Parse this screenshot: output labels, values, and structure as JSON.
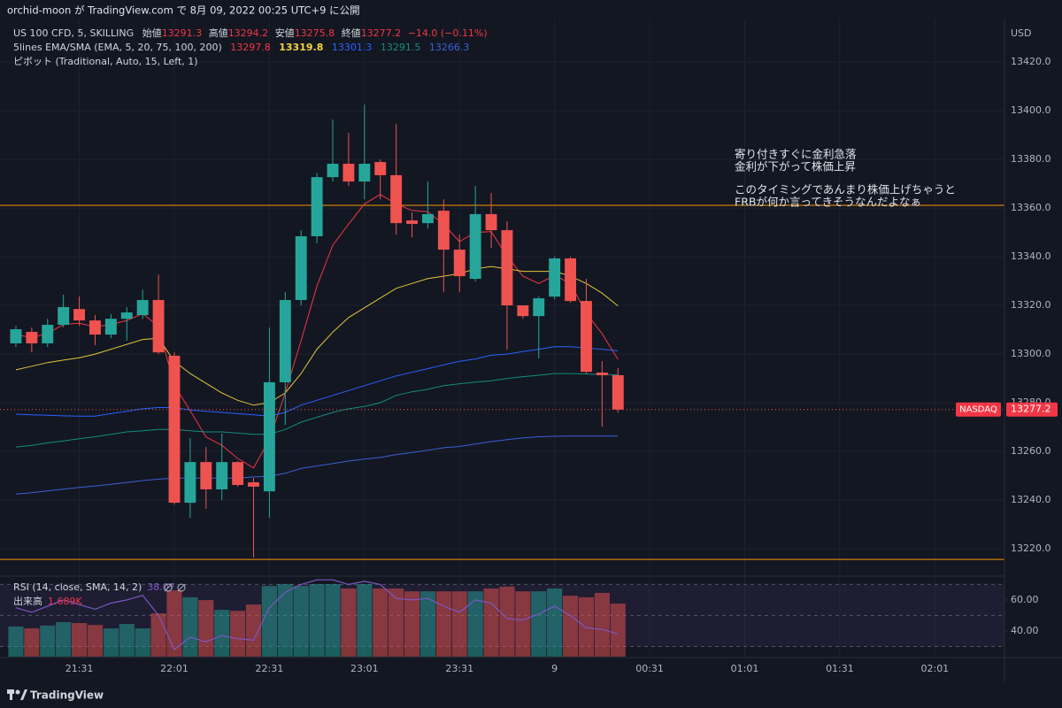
{
  "header": "orchid-moon が TradingView.com で 8月 09, 2022 00:25 UTC+9 に公開",
  "footer": "TradingView",
  "chart_data": {
    "type": "candlestick",
    "symbol": "US 100 CFD, 5, SKILLING",
    "ohlc_labels": [
      "始値",
      "高値",
      "安値",
      "終値"
    ],
    "change": "−14.0 (−0.11%)",
    "indicator": "5lines EMA/SMA (EMA, 5, 20, 75, 100, 200)",
    "pivot_name": "ピボット (Traditional, Auto, 15, Left, 1)",
    "currency": "USD",
    "exchange": "NASDAQ",
    "categories": [
      null,
      null,
      null,
      null,
      "21:31",
      null,
      null,
      null,
      null,
      null,
      "22:01",
      null,
      null,
      null,
      null,
      null,
      "22:31",
      null,
      null,
      null,
      null,
      null,
      "23:01",
      null,
      null,
      null,
      null,
      null,
      "23:31",
      null,
      null,
      null,
      null,
      null,
      "9",
      null,
      null,
      null,
      null,
      null,
      "00:31",
      null,
      null,
      null,
      null,
      null,
      "01:01",
      null,
      null,
      null,
      null,
      null,
      "01:31",
      null,
      null,
      null,
      null,
      null,
      "02:01",
      null,
      null,
      null
    ],
    "open": [
      13304.4,
      13309.1,
      13304.4,
      13312.0,
      13318.5,
      13313.8,
      13308.0,
      13314.5,
      13316.0,
      13322.2,
      13299.3,
      13238.9,
      13255.6,
      13244.4,
      13255.6,
      13247.3,
      13243.6,
      13288.4,
      13322.2,
      13348.4,
      13372.7,
      13378.2,
      13370.9,
      13378.9,
      13373.5,
      13354.9,
      13353.8,
      13358.9,
      13342.9,
      13330.9,
      13357.5,
      13350.9,
      13320.0,
      13315.6,
      13323.6,
      13339.3,
      13321.8,
      13292.4,
      13291.3,
      null,
      null,
      null,
      null,
      null,
      null,
      null,
      null,
      null,
      null,
      null,
      null,
      null,
      null,
      null,
      null,
      null,
      null,
      null,
      null,
      null,
      null,
      null
    ],
    "high": [
      13311.6,
      13310.9,
      13314.5,
      13324.4,
      13323.6,
      13316.0,
      13316.4,
      13319.3,
      13326.5,
      13332.7,
      13300.7,
      13265.5,
      13261.8,
      13267.3,
      13256.0,
      13249.1,
      13310.9,
      13325.5,
      13350.9,
      13374.5,
      13396.4,
      13390.9,
      13402.5,
      13380.0,
      13394.5,
      13358.2,
      13370.9,
      13363.6,
      13349.1,
      13369.1,
      13366.2,
      13354.5,
      13320.0,
      13323.6,
      13340.0,
      13340.0,
      13330.9,
      13297.1,
      13294.2,
      null,
      null,
      null,
      null,
      null,
      null,
      null,
      null,
      null,
      null,
      null,
      null,
      null,
      null,
      null,
      null,
      null,
      null,
      null,
      null,
      null,
      null,
      null
    ],
    "low": [
      13302.9,
      13300.7,
      13302.9,
      13310.9,
      13311.6,
      13303.6,
      13306.5,
      13305.5,
      13314.5,
      13300.0,
      13238.2,
      13232.7,
      13236.4,
      13240.0,
      13245.5,
      13216.4,
      13232.7,
      13270.9,
      13320.0,
      13345.5,
      13370.9,
      13369.1,
      13363.6,
      13363.6,
      13349.1,
      13348.0,
      13351.6,
      13325.5,
      13325.5,
      13329.8,
      13343.6,
      13301.8,
      13314.5,
      13298.2,
      13322.5,
      13321.1,
      13292.0,
      13270.2,
      13275.8,
      null,
      null,
      null,
      null,
      null,
      null,
      null,
      null,
      null,
      null,
      null,
      null,
      null,
      null,
      null,
      null,
      null,
      null,
      null,
      null,
      null,
      null,
      null
    ],
    "close": [
      13310.2,
      13304.4,
      13312.0,
      13319.3,
      13313.8,
      13308.0,
      13314.5,
      13317.1,
      13322.2,
      13300.7,
      13238.9,
      13255.6,
      13244.4,
      13255.6,
      13246.2,
      13245.5,
      13288.4,
      13322.2,
      13348.4,
      13372.7,
      13378.2,
      13370.9,
      13378.2,
      13373.5,
      13353.8,
      13353.5,
      13357.5,
      13342.9,
      13332.0,
      13357.5,
      13350.9,
      13320.0,
      13315.6,
      13322.9,
      13339.3,
      13321.8,
      13292.7,
      13291.3,
      13277.2,
      null,
      null,
      null,
      null,
      null,
      null,
      null,
      null,
      null,
      null,
      null,
      null,
      null,
      null,
      null,
      null,
      null,
      null,
      null,
      null,
      null,
      null,
      null
    ],
    "up_color": "#26a69a",
    "down_color": "#ef5350",
    "ma_series": [
      {
        "color": "#f23645",
        "values": [
          13308.0,
          13306.8,
          13308.5,
          13312.1,
          13312.7,
          13311.1,
          13312.2,
          13313.8,
          13316.6,
          13311.3,
          13287.2,
          13276.7,
          13265.9,
          13262.5,
          13257.1,
          13253.2,
          13264.9,
          13284.0,
          13305.5,
          13327.9,
          13344.7,
          13353.4,
          13361.7,
          13365.6,
          13361.7,
          13359.0,
          13358.5,
          13353.3,
          13346.2,
          13350.0,
          13350.3,
          13340.2,
          13332.0,
          13329.0,
          13332.4,
          13328.9,
          13316.8,
          13308.3,
          13297.8,
          null,
          null,
          null,
          null,
          null,
          null,
          null,
          null,
          null,
          null,
          null,
          null,
          null,
          null,
          null,
          null,
          null,
          null,
          null,
          null,
          null,
          null,
          null
        ]
      },
      {
        "color": "#e2c53a",
        "values": [
          13293.5,
          13295.0,
          13296.5,
          13297.5,
          13298.5,
          13300.0,
          13302.0,
          13304.0,
          13306.0,
          13306.5,
          13297.0,
          13292.0,
          13288.0,
          13284.0,
          13281.0,
          13279.0,
          13280.0,
          13284.0,
          13292.0,
          13302.0,
          13309.0,
          13315.0,
          13319.0,
          13323.0,
          13327.0,
          13329.0,
          13331.0,
          13332.0,
          13333.0,
          13335.0,
          13336.0,
          13335.0,
          13334.0,
          13334.0,
          13334.0,
          13332.0,
          13329.0,
          13325.0,
          13319.8,
          null,
          null,
          null,
          null,
          null,
          null,
          null,
          null,
          null,
          null,
          null,
          null,
          null,
          null,
          null,
          null,
          null,
          null,
          null,
          null,
          null,
          null,
          null
        ]
      },
      {
        "color": "#2962ff",
        "values": [
          13275.3,
          13275.0,
          13274.8,
          13274.6,
          13274.5,
          13274.5,
          13275.5,
          13276.5,
          13277.5,
          13278.0,
          13278.0,
          13277.0,
          13276.5,
          13276.0,
          13275.5,
          13275.0,
          13274.5,
          13276.0,
          13279.0,
          13281.0,
          13283.0,
          13285.0,
          13287.0,
          13289.0,
          13291.0,
          13292.5,
          13294.0,
          13295.6,
          13297.0,
          13298.0,
          13299.5,
          13300.0,
          13301.0,
          13302.0,
          13303.0,
          13303.0,
          13302.5,
          13302.0,
          13301.3,
          null,
          null,
          null,
          null,
          null,
          null,
          null,
          null,
          null,
          null,
          null,
          null,
          null,
          null,
          null,
          null,
          null,
          null,
          null,
          null,
          null,
          null,
          null
        ]
      },
      {
        "color": "#138d7c",
        "values": [
          13261.8,
          13262.5,
          13263.5,
          13264.3,
          13265.2,
          13266.0,
          13267.0,
          13268.0,
          13268.5,
          13269.0,
          13269.0,
          13268.5,
          13268.0,
          13268.0,
          13267.5,
          13267.0,
          13267.0,
          13269.0,
          13272.0,
          13274.0,
          13276.0,
          13277.5,
          13278.5,
          13280.0,
          13283.0,
          13284.5,
          13285.5,
          13287.0,
          13287.8,
          13288.5,
          13289.0,
          13290.0,
          13290.7,
          13291.3,
          13292.0,
          13292.0,
          13291.8,
          13291.6,
          13291.5,
          null,
          null,
          null,
          null,
          null,
          null,
          null,
          null,
          null,
          null,
          null,
          null,
          null,
          null,
          null,
          null,
          null,
          null,
          null,
          null,
          null,
          null,
          null
        ]
      },
      {
        "color": "#3c5fd6",
        "values": [
          13242.5,
          13243.0,
          13243.8,
          13244.5,
          13245.2,
          13245.8,
          13246.5,
          13247.2,
          13248.0,
          13248.6,
          13249.0,
          13249.0,
          13249.0,
          13249.0,
          13249.0,
          13249.5,
          13249.8,
          13251.0,
          13253.0,
          13254.0,
          13255.0,
          13256.0,
          13256.8,
          13257.5,
          13258.7,
          13259.5,
          13260.5,
          13261.5,
          13262.0,
          13263.0,
          13264.0,
          13264.8,
          13265.5,
          13266.0,
          13266.2,
          13266.3,
          13266.3,
          13266.3,
          13266.3,
          null,
          null,
          null,
          null,
          null,
          null,
          null,
          null,
          null,
          null,
          null,
          null,
          null,
          null,
          null,
          null,
          null,
          null,
          null,
          null,
          null,
          null,
          null
        ]
      }
    ],
    "pivot_levels": [
      13361.1,
      13215.6
    ],
    "pivot_color": "#ff9800",
    "ylim": [
      13209.1,
      13436.4
    ],
    "yticks": [
      {
        "value": 13220,
        "label": "13220.0"
      },
      {
        "value": 13240,
        "label": "13240.0"
      },
      {
        "value": 13260,
        "label": "13260.0"
      },
      {
        "value": 13280,
        "label": "13280.0"
      },
      {
        "value": 13300,
        "label": "13300.0"
      },
      {
        "value": 13320,
        "label": "13320.0"
      },
      {
        "value": 13340,
        "label": "13340.0"
      },
      {
        "value": 13360,
        "label": "13360.0"
      },
      {
        "value": 13380,
        "label": "13380.0"
      },
      {
        "value": 13400,
        "label": "13400.0"
      },
      {
        "value": 13420,
        "label": "13420.0"
      }
    ],
    "grid": true,
    "annotation": [
      "寄り付きすぐに金利急落",
      "金利が下がって株価上昇",
      "このタイミングであんまり株価上げちゃうと",
      "FRBが何か言ってきそうなんだよなぁ"
    ],
    "rsi": {
      "name": "RSI (14, close, SMA, 14, 2)",
      "color": "#7e57c2",
      "values": [
        55,
        52,
        56,
        60,
        57,
        54,
        58,
        60,
        63,
        50,
        28,
        36,
        33,
        37,
        35,
        34,
        55,
        65,
        70,
        73,
        73,
        70,
        72,
        70,
        61,
        60,
        61,
        56,
        52,
        60,
        58,
        48,
        47,
        51,
        56,
        50,
        42,
        41,
        38.07,
        null,
        null,
        null,
        null,
        null,
        null,
        null,
        null,
        null,
        null,
        null,
        null,
        null,
        null,
        null,
        null,
        null,
        null,
        null,
        null,
        null,
        null,
        null
      ],
      "ylim": [
        23.4,
        73.1
      ],
      "yticks": [
        {
          "value": 60,
          "label": "60.00"
        },
        {
          "value": 40,
          "label": "40.00"
        }
      ],
      "bands": [
        70,
        50,
        30
      ]
    },
    "volume": {
      "name": "出来高",
      "current_label": "1.689K",
      "ylim": [
        0,
        2.45
      ],
      "values": [
        0.96,
        0.9,
        0.99,
        1.1,
        1.07,
        1.01,
        0.9,
        1.04,
        0.9,
        1.38,
        2.11,
        1.89,
        1.8,
        1.49,
        1.46,
        1.66,
        2.25,
        2.31,
        2.25,
        2.31,
        2.31,
        2.17,
        2.31,
        2.17,
        2.17,
        2.08,
        2.08,
        2.08,
        2.08,
        2.08,
        2.17,
        2.23,
        2.08,
        2.08,
        2.17,
        1.94,
        1.89,
        2.03,
        1.689,
        null,
        null,
        null,
        null,
        null,
        null,
        null,
        null,
        null,
        null,
        null,
        null,
        null,
        null,
        null,
        null,
        null,
        null,
        null,
        null,
        null,
        null,
        null
      ]
    }
  }
}
